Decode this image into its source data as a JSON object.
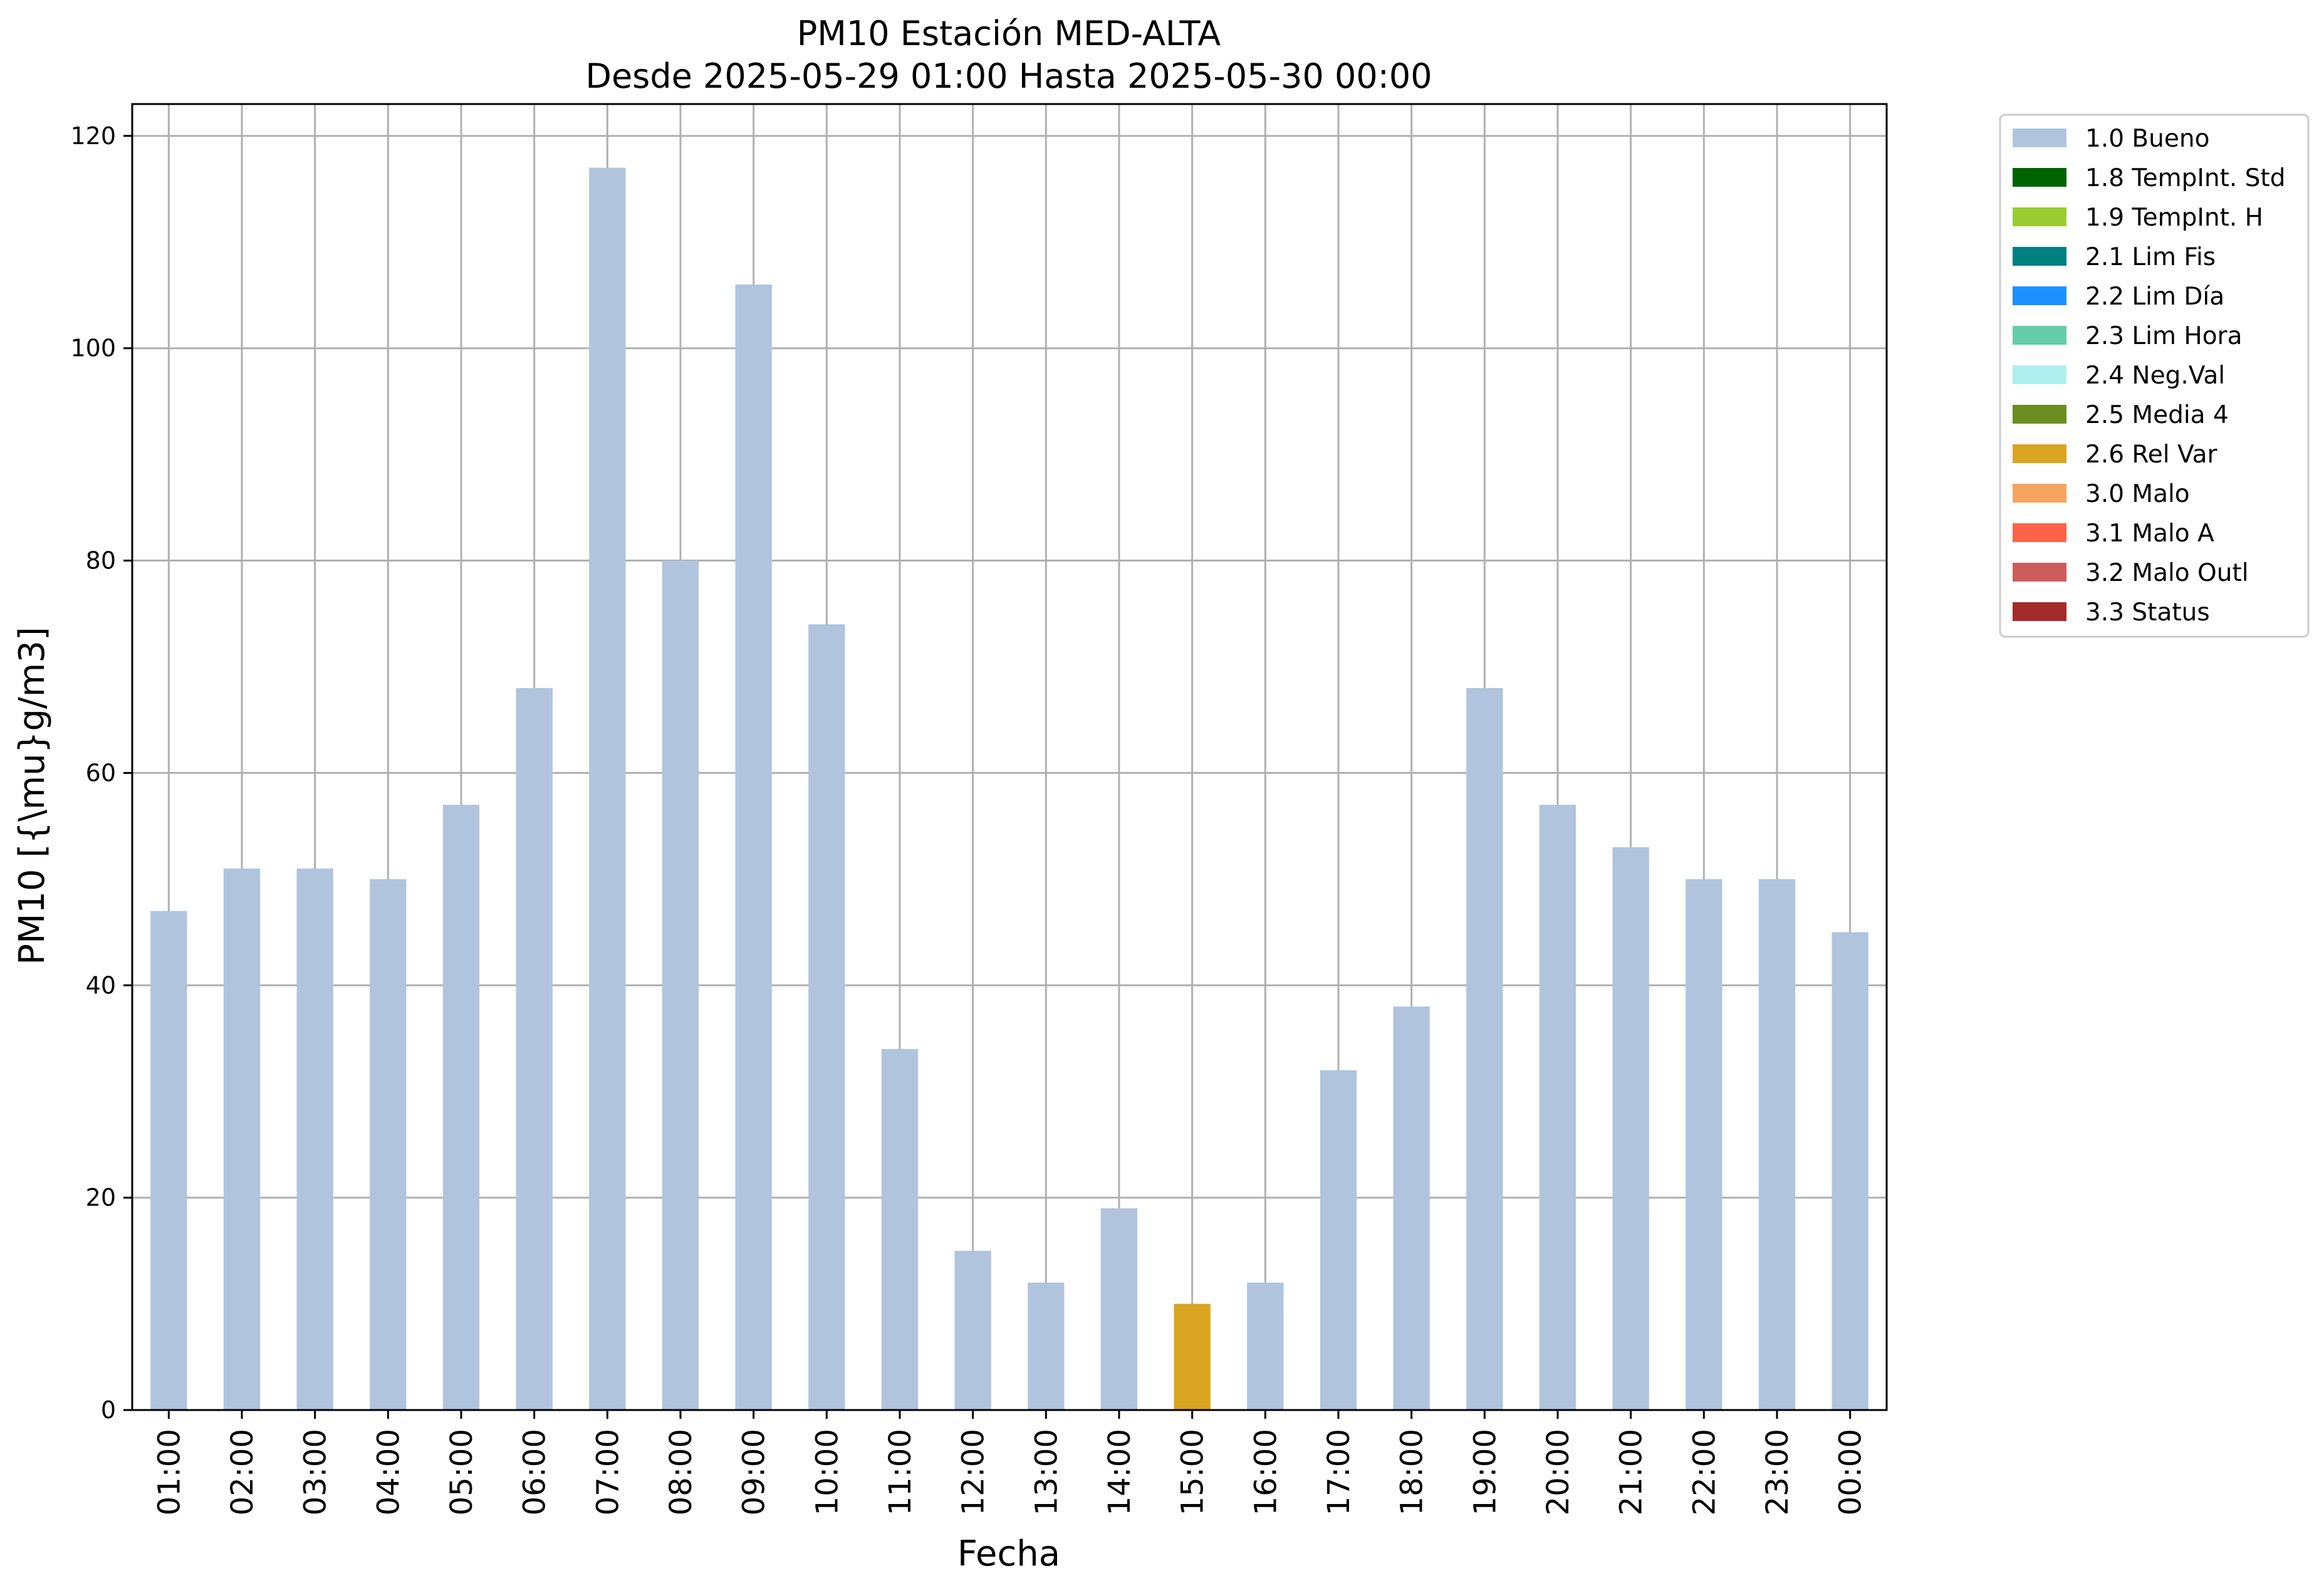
{
  "chart_data": {
    "type": "bar",
    "title_line1": "PM10 Estación MED-ALTA",
    "title_line2": "Desde 2025-05-29 01:00 Hasta 2025-05-30 00:00",
    "xlabel": "Fecha",
    "ylabel": "PM10 [{\\mu}g/m3]",
    "ylim": [
      0,
      123
    ],
    "yticks": [
      0,
      20,
      40,
      60,
      80,
      100,
      120
    ],
    "grid": true,
    "legend_position": "outside-top-right",
    "categories": [
      "01:00",
      "02:00",
      "03:00",
      "04:00",
      "05:00",
      "06:00",
      "07:00",
      "08:00",
      "09:00",
      "10:00",
      "11:00",
      "12:00",
      "13:00",
      "14:00",
      "15:00",
      "16:00",
      "17:00",
      "18:00",
      "19:00",
      "20:00",
      "21:00",
      "22:00",
      "23:00",
      "00:00"
    ],
    "values": [
      47,
      51,
      51,
      50,
      57,
      68,
      117,
      80,
      106,
      74,
      34,
      15,
      12,
      19,
      10,
      12,
      32,
      38,
      68,
      57,
      53,
      50,
      50,
      45
    ],
    "flags": [
      "1.0 Bueno",
      "1.0 Bueno",
      "1.0 Bueno",
      "1.0 Bueno",
      "1.0 Bueno",
      "1.0 Bueno",
      "1.0 Bueno",
      "1.0 Bueno",
      "1.0 Bueno",
      "1.0 Bueno",
      "1.0 Bueno",
      "1.0 Bueno",
      "1.0 Bueno",
      "1.0 Bueno",
      "2.6 Rel Var",
      "1.0 Bueno",
      "1.0 Bueno",
      "1.0 Bueno",
      "1.0 Bueno",
      "1.0 Bueno",
      "1.0 Bueno",
      "1.0 Bueno",
      "1.0 Bueno",
      "1.0 Bueno"
    ],
    "legend": [
      {
        "name": "1.0 Bueno",
        "color": "#b0c4de"
      },
      {
        "name": "1.8 TempInt. Std",
        "color": "#006400"
      },
      {
        "name": "1.9 TempInt. H",
        "color": "#9acd32"
      },
      {
        "name": "2.1 Lim Fis",
        "color": "#008080"
      },
      {
        "name": "2.2 Lim Día",
        "color": "#1e90ff"
      },
      {
        "name": "2.3 Lim Hora",
        "color": "#66cdaa"
      },
      {
        "name": "2.4 Neg.Val",
        "color": "#afeeee"
      },
      {
        "name": "2.5 Media 4",
        "color": "#6b8e23"
      },
      {
        "name": "2.6 Rel Var",
        "color": "#daa520"
      },
      {
        "name": "3.0 Malo",
        "color": "#f4a460"
      },
      {
        "name": "3.1 Malo A",
        "color": "#ff6347"
      },
      {
        "name": "3.2 Malo Outl",
        "color": "#cd5c5c"
      },
      {
        "name": "3.3 Status",
        "color": "#a52a2a"
      }
    ]
  }
}
